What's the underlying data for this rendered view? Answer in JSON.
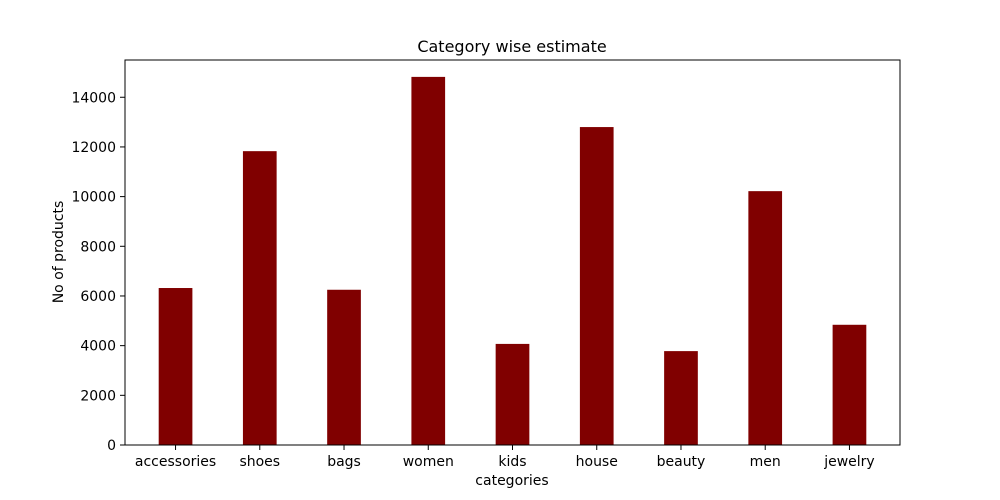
{
  "chart_data": {
    "type": "bar",
    "title": "Category wise estimate",
    "xlabel": "categories",
    "ylabel": "No of products",
    "categories": [
      "accessories",
      "shoes",
      "bags",
      "women",
      "kids",
      "house",
      "beauty",
      "men",
      "jewelry"
    ],
    "values": [
      6320,
      11830,
      6250,
      14820,
      4070,
      12800,
      3780,
      10220,
      4840
    ],
    "ylim": [
      0,
      15500
    ],
    "yticks": [
      0,
      2000,
      4000,
      6000,
      8000,
      10000,
      12000,
      14000
    ],
    "grid": false,
    "bar_color": "#800000"
  }
}
